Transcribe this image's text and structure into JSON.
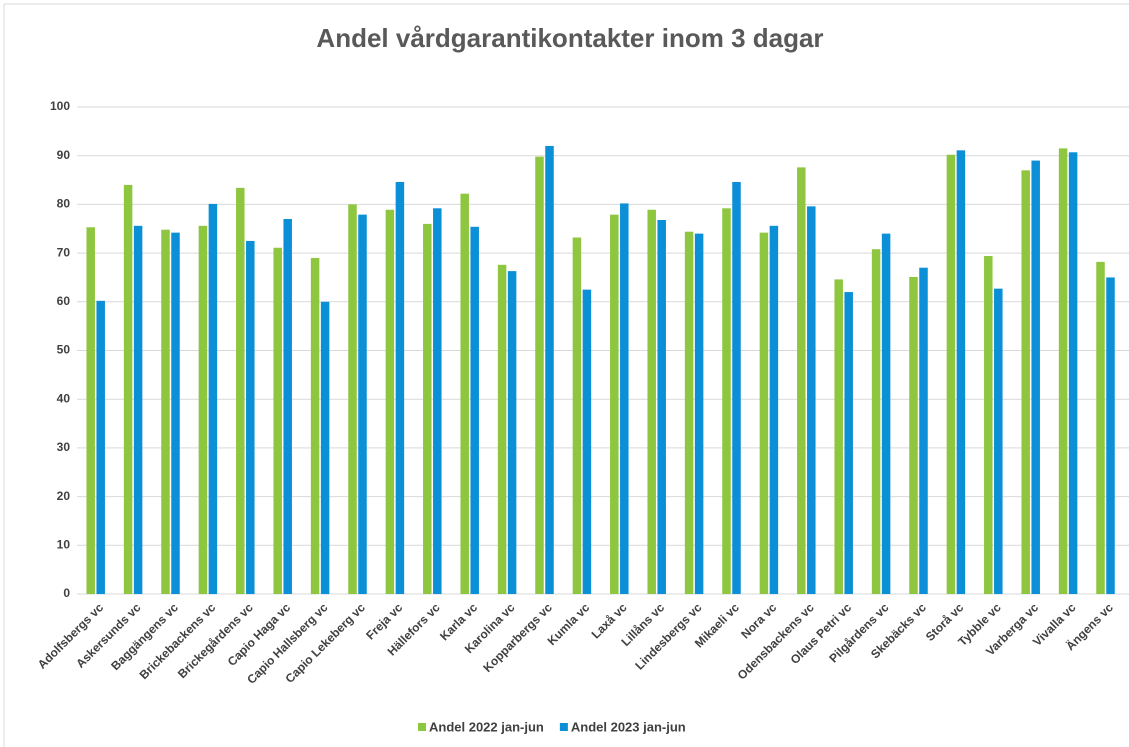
{
  "chart_data": {
    "type": "bar",
    "title": "Andel vårdgarantikontakter inom 3 dagar",
    "categories": [
      "Adolfsbergs vc",
      "Askersunds vc",
      "Baggängens vc",
      "Brickebackens vc",
      "Brickegårdens vc",
      "Capio Haga vc",
      "Capio Hallsberg vc",
      "Capio Lekeberg vc",
      "Freja vc",
      "Hällefors vc",
      "Karla vc",
      "Karolina vc",
      "Kopparbergs vc",
      "Kumla vc",
      "Laxå vc",
      "Lillåns vc",
      "Lindesbergs vc",
      "Mikaeli vc",
      "Nora vc",
      "Odensbackens vc",
      "Olaus Petri vc",
      "Pilgårdens vc",
      "Skebäcks vc",
      "Storå vc",
      "Tybble vc",
      "Varberga vc",
      "Vivalla vc",
      "Ängens vc"
    ],
    "series": [
      {
        "name": "Andel 2022 jan-jun",
        "color": "#8fc640",
        "values": [
          75.3,
          84,
          74.8,
          75.6,
          83.4,
          71.1,
          69,
          80,
          78.9,
          76,
          82.2,
          67.6,
          89.8,
          73.2,
          77.9,
          78.9,
          74.4,
          79.2,
          74.2,
          87.6,
          64.6,
          70.8,
          65.1,
          90.2,
          69.4,
          87,
          91.5,
          68.2
        ]
      },
      {
        "name": "Andel 2023 jan-jun",
        "color": "#0b8fd6",
        "values": [
          60.2,
          75.6,
          74.2,
          80.1,
          72.5,
          77,
          60,
          77.9,
          84.6,
          79.2,
          75.4,
          66.3,
          92,
          62.5,
          80.2,
          76.8,
          74,
          84.6,
          75.6,
          79.6,
          62,
          74,
          67,
          91.1,
          62.7,
          89,
          90.7,
          65
        ]
      }
    ],
    "ylim": [
      0,
      100
    ],
    "yticks": [
      0,
      10,
      20,
      30,
      40,
      50,
      60,
      70,
      80,
      90,
      100
    ],
    "grid": true,
    "legend": "bottom"
  }
}
